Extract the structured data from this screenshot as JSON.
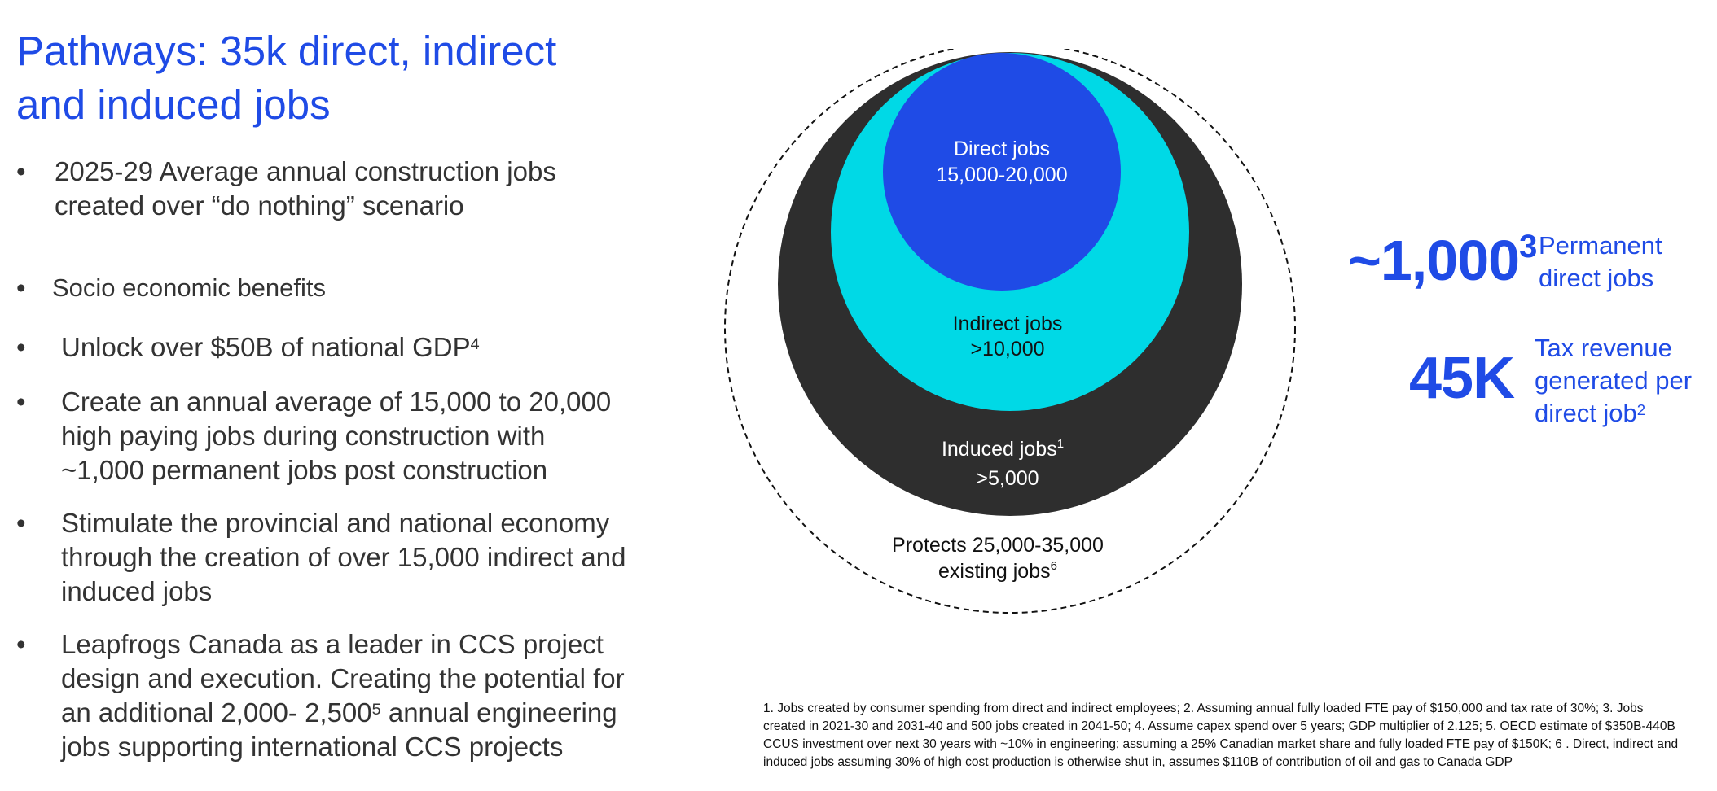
{
  "title": "Pathways: 35k direct, indirect and induced jobs",
  "bullets": [
    {
      "text": "2025-29 Average annual construction jobs created over “do nothing” scenario"
    },
    {
      "text": "Socio economic benefits"
    },
    {
      "text": "Unlock over $50B of national GDP",
      "sup": "4"
    },
    {
      "text": "Create an annual average of 15,000 to 20,000 high paying jobs during construction with ~1,000 permanent jobs post construction"
    },
    {
      "text": "Stimulate the provincial and national economy through the creation of over 15,000 indirect and induced jobs"
    },
    {
      "text_before": "Leapfrogs Canada as a leader in CCS project design and execution. Creating the potential for an additional 2,000- 2,500",
      "sup": "5",
      "text_after": " annual engineering jobs supporting international CCS projects"
    }
  ],
  "diagram": {
    "direct": {
      "label": "Direct jobs",
      "value": "15,000-20,000"
    },
    "indirect": {
      "label": "Indirect jobs",
      "value": ">10,000"
    },
    "induced": {
      "label": "Induced jobs",
      "sup": "1",
      "value": ">5,000"
    },
    "protects": {
      "line1": "Protects 25,000-35,000",
      "line2": "existing jobs",
      "sup": "6"
    },
    "colors": {
      "direct": "#1f4be6",
      "indirect": "#00d9e6",
      "induced": "#2e2e2e",
      "outline": "#111111"
    }
  },
  "metrics": [
    {
      "value": "~1,000",
      "sup": "3",
      "label_line1": "Permanent",
      "label_line2": "direct jobs"
    },
    {
      "value": "45K",
      "label_line1": "Tax revenue",
      "label_line2": "generated per",
      "label_line3": "direct job",
      "sup": "2"
    }
  ],
  "footnote": "1. Jobs created by consumer spending from direct and indirect employees; 2. Assuming annual fully loaded FTE pay of $150,000 and tax rate of 30%; 3. Jobs created in 2021-30 and 2031-40 and 500 jobs created in 2041-50; 4. Assume capex spend over 5 years; GDP multiplier of 2.125; 5. OECD estimate of $350B-440B CCUS investment over next 30 years with ~10% in engineering; assuming a 25% Canadian market share and fully loaded FTE pay of $150K; 6 . Direct, indirect and induced jobs assuming 30% of high cost production is otherwise shut in, assumes $110B of contribution of oil and gas to Canada GDP",
  "accent_color": "#1f4be6"
}
